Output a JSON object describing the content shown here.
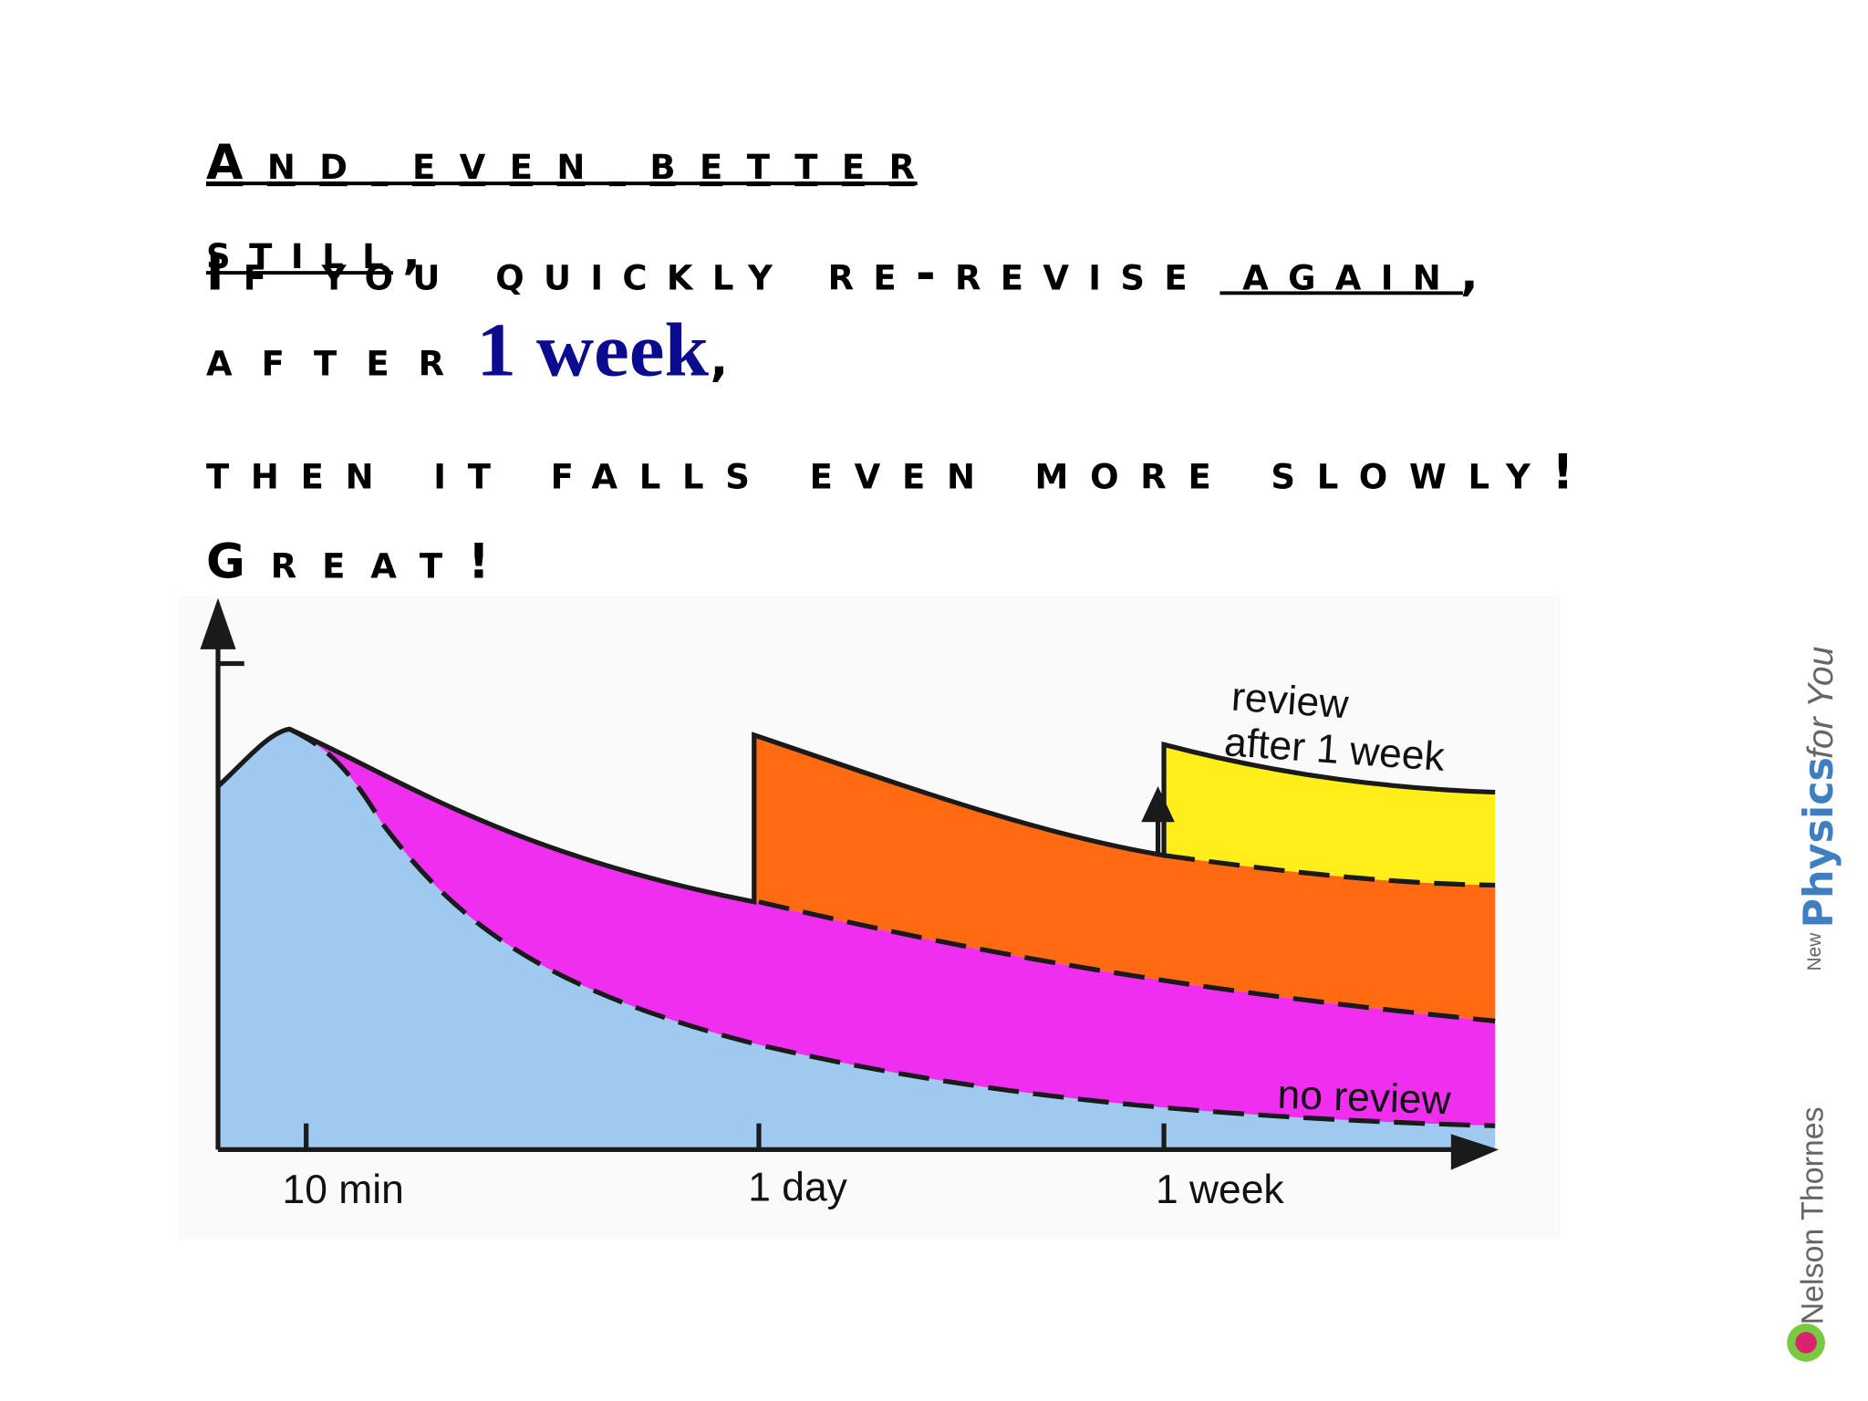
{
  "slide": {
    "title": [
      "And even better",
      "still,"
    ],
    "line1": {
      "text": "If you quickly re-revise",
      "emphasis": "again",
      "end": ","
    },
    "line2": {
      "text": "after",
      "emphasis": "1 week",
      "end": ","
    },
    "line3": "then it falls even more slowly!",
    "line4": "Great!",
    "diagram": {
      "review_label": [
        "review",
        "after 1 week"
      ],
      "no_review_label": "no review",
      "x_labels": [
        "10 min",
        "1 day",
        "1 week"
      ]
    },
    "branding": {
      "series": "New",
      "name": "Physics",
      "suffix": "for You",
      "publisher": "Nelson Thornes"
    }
  }
}
